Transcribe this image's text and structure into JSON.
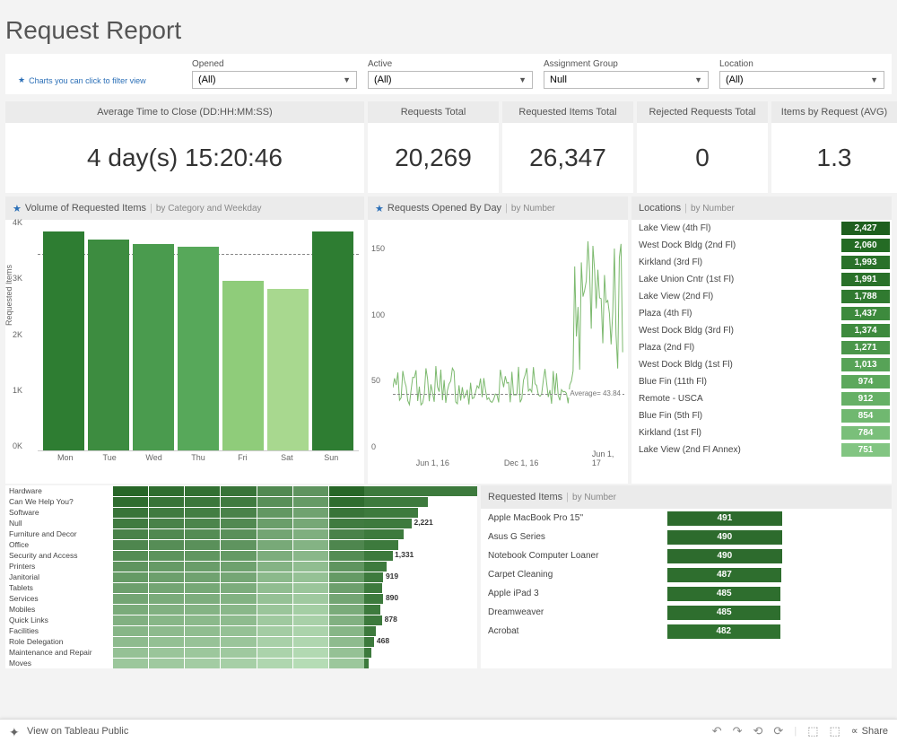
{
  "title": "Request Report",
  "filter_hint": "Charts you can click to filter view",
  "filters": [
    {
      "label": "Opened",
      "value": "(All)"
    },
    {
      "label": "Active",
      "value": "(All)"
    },
    {
      "label": "Assignment Group",
      "value": "Null"
    },
    {
      "label": "Location",
      "value": "(All)"
    }
  ],
  "kpis": [
    {
      "label": "Average Time to Close (DD:HH:MM:SS)",
      "value": "4 day(s) 15:20:46"
    },
    {
      "label": "Requests Total",
      "value": "20,269"
    },
    {
      "label": "Requested Items Total",
      "value": "26,347"
    },
    {
      "label": "Rejected Requests Total",
      "value": "0"
    },
    {
      "label": "Items by Request (AVG)",
      "value": "1.3"
    }
  ],
  "volume_chart": {
    "title": "Volume of Requested Items",
    "subtitle": "by Category and Weekday",
    "y_label": "Requested Items",
    "y_ticks": [
      "0K",
      "1K",
      "2K",
      "3K",
      "4K"
    ],
    "y_max": 4300,
    "avg_value": 3765,
    "days": [
      "Mon",
      "Tue",
      "Wed",
      "Thu",
      "Fri",
      "Sat",
      "Sun"
    ],
    "values": [
      4200,
      4050,
      3950,
      3900,
      3250,
      3100,
      4200
    ],
    "colors": [
      "#2e7d32",
      "#3d8c40",
      "#4a9b4e",
      "#57a85a",
      "#8fcc7a",
      "#a8d88f",
      "#2e7d32"
    ]
  },
  "opened_chart": {
    "title": "Requests Opened By Day",
    "subtitle": "by Number",
    "y_ticks": [
      "0",
      "50",
      "100",
      "150"
    ],
    "y_max": 170,
    "avg": 43.84,
    "avg_label": "Average= 43.84",
    "x_ticks": [
      "Jun 1, 16",
      "Dec 1, 16",
      "Jun 1, 17"
    ],
    "series_color": "#7cb96e"
  },
  "locations": {
    "title": "Locations",
    "subtitle": "by Number",
    "max": 2427,
    "rows": [
      {
        "name": "Lake View (4th Fl)",
        "value": "2,427",
        "n": 2427,
        "c": "#1e5f1e"
      },
      {
        "name": "West Dock Bldg (2nd Fl)",
        "value": "2,060",
        "n": 2060,
        "c": "#246b24"
      },
      {
        "name": "Kirkland (3rd Fl)",
        "value": "1,993",
        "n": 1993,
        "c": "#2a712a"
      },
      {
        "name": "Lake Union Cntr (1st Fl)",
        "value": "1,991",
        "n": 1991,
        "c": "#2a712a"
      },
      {
        "name": "Lake View (2nd Fl)",
        "value": "1,788",
        "n": 1788,
        "c": "#307a30"
      },
      {
        "name": "Plaza (4th Fl)",
        "value": "1,437",
        "n": 1437,
        "c": "#3d8a3d"
      },
      {
        "name": "West Dock Bldg (3rd Fl)",
        "value": "1,374",
        "n": 1374,
        "c": "#3d8a3d"
      },
      {
        "name": "Plaza (2nd Fl)",
        "value": "1,271",
        "n": 1271,
        "c": "#4a964a"
      },
      {
        "name": "West Dock Bldg (1st Fl)",
        "value": "1,013",
        "n": 1013,
        "c": "#57a357"
      },
      {
        "name": "Blue Fin (11th Fl)",
        "value": "974",
        "n": 974,
        "c": "#5ca85c"
      },
      {
        "name": "Remote - USCA",
        "value": "912",
        "n": 912,
        "c": "#66b066"
      },
      {
        "name": "Blue Fin (5th Fl)",
        "value": "854",
        "n": 854,
        "c": "#70b870"
      },
      {
        "name": "Kirkland (1st Fl)",
        "value": "784",
        "n": 784,
        "c": "#7abf7a"
      },
      {
        "name": "Lake View (2nd Fl Annex)",
        "value": "751",
        "n": 751,
        "c": "#82c582"
      }
    ]
  },
  "heatmap": {
    "rows": [
      {
        "label": "Hardware",
        "shades": [
          0.95,
          0.9,
          0.88,
          0.85,
          0.7,
          0.62,
          0.95
        ],
        "bar": 1.0,
        "val": ""
      },
      {
        "label": "Can We Help You?",
        "shades": [
          0.9,
          0.85,
          0.83,
          0.8,
          0.66,
          0.58,
          0.9
        ],
        "bar": 0.56,
        "val": ""
      },
      {
        "label": "Software",
        "shades": [
          0.85,
          0.8,
          0.78,
          0.75,
          0.6,
          0.52,
          0.85
        ],
        "bar": 0.48,
        "val": ""
      },
      {
        "label": "Null",
        "shades": [
          0.8,
          0.75,
          0.73,
          0.7,
          0.55,
          0.48,
          0.8
        ],
        "bar": 0.42,
        "val": "2,221"
      },
      {
        "label": "Furniture and Decor",
        "shades": [
          0.75,
          0.7,
          0.68,
          0.65,
          0.5,
          0.43,
          0.75
        ],
        "bar": 0.35,
        "val": ""
      },
      {
        "label": "Office",
        "shades": [
          0.72,
          0.67,
          0.65,
          0.62,
          0.47,
          0.4,
          0.72
        ],
        "bar": 0.3,
        "val": ""
      },
      {
        "label": "Security and Access",
        "shades": [
          0.68,
          0.63,
          0.61,
          0.58,
          0.44,
          0.37,
          0.68
        ],
        "bar": 0.25,
        "val": "1,331"
      },
      {
        "label": "Printers",
        "shades": [
          0.62,
          0.58,
          0.56,
          0.53,
          0.4,
          0.33,
          0.62
        ],
        "bar": 0.2,
        "val": ""
      },
      {
        "label": "Janitorial",
        "shades": [
          0.58,
          0.54,
          0.52,
          0.49,
          0.36,
          0.3,
          0.58
        ],
        "bar": 0.17,
        "val": "919"
      },
      {
        "label": "Tablets",
        "shades": [
          0.54,
          0.5,
          0.48,
          0.45,
          0.33,
          0.27,
          0.54
        ],
        "bar": 0.16,
        "val": ""
      },
      {
        "label": "Services",
        "shades": [
          0.5,
          0.46,
          0.44,
          0.41,
          0.3,
          0.24,
          0.5
        ],
        "bar": 0.17,
        "val": "890"
      },
      {
        "label": "Mobiles",
        "shades": [
          0.46,
          0.42,
          0.4,
          0.37,
          0.27,
          0.21,
          0.46
        ],
        "bar": 0.14,
        "val": ""
      },
      {
        "label": "Quick Links",
        "shades": [
          0.42,
          0.38,
          0.36,
          0.34,
          0.24,
          0.19,
          0.42
        ],
        "bar": 0.16,
        "val": "878"
      },
      {
        "label": "Facilities",
        "shades": [
          0.38,
          0.35,
          0.33,
          0.3,
          0.22,
          0.17,
          0.38
        ],
        "bar": 0.1,
        "val": ""
      },
      {
        "label": "Role Delegation",
        "shades": [
          0.34,
          0.31,
          0.29,
          0.27,
          0.19,
          0.15,
          0.34
        ],
        "bar": 0.09,
        "val": "468"
      },
      {
        "label": "Maintenance and Repair",
        "shades": [
          0.3,
          0.27,
          0.26,
          0.24,
          0.17,
          0.13,
          0.3
        ],
        "bar": 0.06,
        "val": ""
      },
      {
        "label": "Moves",
        "shades": [
          0.26,
          0.24,
          0.22,
          0.2,
          0.15,
          0.11,
          0.26
        ],
        "bar": 0.04,
        "val": ""
      }
    ]
  },
  "requested_items": {
    "title": "Requested Items",
    "subtitle": "by Number",
    "max": 491,
    "rows": [
      {
        "name": "Apple MacBook Pro 15''",
        "value": 491,
        "c": "#2d6b2d"
      },
      {
        "name": "Asus G Series",
        "value": 490,
        "c": "#2d6b2d"
      },
      {
        "name": "Notebook Computer Loaner",
        "value": 490,
        "c": "#2d6b2d"
      },
      {
        "name": "Carpet Cleaning",
        "value": 487,
        "c": "#2e6e2e"
      },
      {
        "name": "Apple iPad 3",
        "value": 485,
        "c": "#2e6e2e"
      },
      {
        "name": "Dreamweaver",
        "value": 485,
        "c": "#2e6e2e"
      },
      {
        "name": "Acrobat",
        "value": 482,
        "c": "#307230"
      }
    ]
  },
  "footer": {
    "view_on": "View on Tableau Public",
    "share": "Share"
  }
}
